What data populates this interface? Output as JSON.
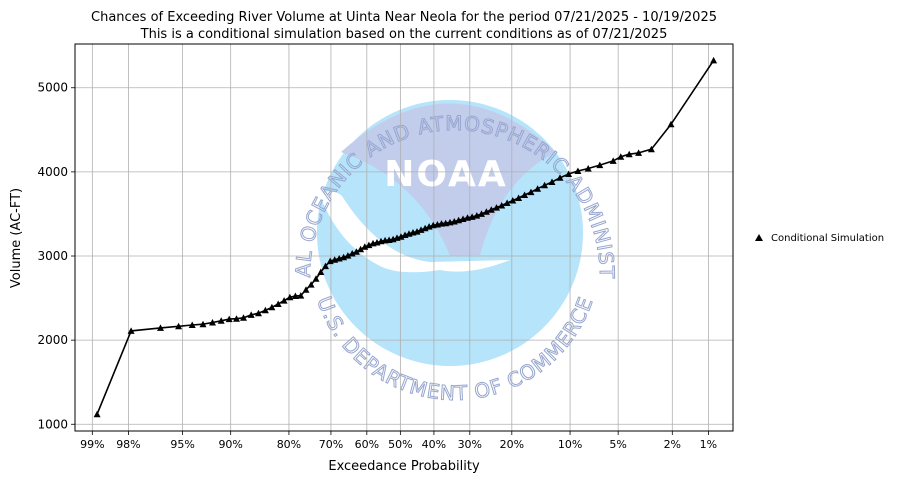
{
  "chart_data": {
    "type": "line",
    "title": "Chances of Exceeding River Volume at Uinta Near Neola for the period 07/21/2025 - 10/19/2025",
    "subtitle": "This is a conditional simulation based on the current conditions as of 07/21/2025",
    "xlabel": "Exceedance Probability",
    "ylabel": "Volume (AC-FT)",
    "x_scale": "normal-probability",
    "x_ticks": [
      {
        "p": 99,
        "label": "99%"
      },
      {
        "p": 98,
        "label": "98%"
      },
      {
        "p": 95,
        "label": "95%"
      },
      {
        "p": 90,
        "label": "90%"
      },
      {
        "p": 80,
        "label": "80%"
      },
      {
        "p": 70,
        "label": "70%"
      },
      {
        "p": 60,
        "label": "60%"
      },
      {
        "p": 50,
        "label": "50%"
      },
      {
        "p": 40,
        "label": "40%"
      },
      {
        "p": 30,
        "label": "30%"
      },
      {
        "p": 20,
        "label": "20%"
      },
      {
        "p": 10,
        "label": "10%"
      },
      {
        "p": 5,
        "label": "5%"
      },
      {
        "p": 2,
        "label": "2%"
      },
      {
        "p": 1,
        "label": "1%"
      }
    ],
    "y_ticks": [
      {
        "v": 1000,
        "label": "1000"
      },
      {
        "v": 2000,
        "label": "2000"
      },
      {
        "v": 3000,
        "label": "3000"
      },
      {
        "v": 4000,
        "label": "4000"
      },
      {
        "v": 5000,
        "label": "5000"
      }
    ],
    "ylim": [
      920,
      5520
    ],
    "xlim_prob": [
      99.3,
      0.6
    ],
    "grid": true,
    "legend_position": "right",
    "line_color": "#000000",
    "series": [
      {
        "name": "Conditional Simulation",
        "marker": "triangle",
        "points": [
          [
            98.9,
            1120
          ],
          [
            97.9,
            2110
          ],
          [
            96.5,
            2145
          ],
          [
            95.3,
            2165
          ],
          [
            94.2,
            2180
          ],
          [
            93.2,
            2190
          ],
          [
            92.2,
            2210
          ],
          [
            91.2,
            2230
          ],
          [
            90.2,
            2250
          ],
          [
            89.2,
            2255
          ],
          [
            88.2,
            2265
          ],
          [
            87.0,
            2300
          ],
          [
            85.8,
            2320
          ],
          [
            84.6,
            2355
          ],
          [
            83.4,
            2390
          ],
          [
            82.2,
            2430
          ],
          [
            81.0,
            2470
          ],
          [
            79.8,
            2510
          ],
          [
            78.6,
            2525
          ],
          [
            77.4,
            2530
          ],
          [
            76.2,
            2600
          ],
          [
            75.0,
            2660
          ],
          [
            73.8,
            2730
          ],
          [
            72.6,
            2810
          ],
          [
            71.4,
            2880
          ],
          [
            70.2,
            2940
          ],
          [
            69.0,
            2955
          ],
          [
            67.8,
            2970
          ],
          [
            66.6,
            2985
          ],
          [
            65.4,
            3005
          ],
          [
            64.2,
            3030
          ],
          [
            63.0,
            3050
          ],
          [
            61.8,
            3080
          ],
          [
            60.6,
            3110
          ],
          [
            59.4,
            3130
          ],
          [
            58.2,
            3150
          ],
          [
            57.0,
            3160
          ],
          [
            55.8,
            3175
          ],
          [
            54.6,
            3185
          ],
          [
            53.4,
            3190
          ],
          [
            52.2,
            3200
          ],
          [
            51.0,
            3215
          ],
          [
            49.8,
            3230
          ],
          [
            48.6,
            3250
          ],
          [
            47.4,
            3265
          ],
          [
            46.2,
            3280
          ],
          [
            45.0,
            3290
          ],
          [
            43.8,
            3310
          ],
          [
            42.6,
            3330
          ],
          [
            41.4,
            3350
          ],
          [
            40.2,
            3365
          ],
          [
            39.0,
            3375
          ],
          [
            37.8,
            3385
          ],
          [
            36.6,
            3390
          ],
          [
            35.4,
            3400
          ],
          [
            34.2,
            3410
          ],
          [
            33.0,
            3425
          ],
          [
            31.8,
            3440
          ],
          [
            30.6,
            3455
          ],
          [
            29.4,
            3465
          ],
          [
            28.2,
            3480
          ],
          [
            27.0,
            3500
          ],
          [
            25.8,
            3525
          ],
          [
            24.6,
            3550
          ],
          [
            23.4,
            3575
          ],
          [
            22.2,
            3600
          ],
          [
            21.0,
            3630
          ],
          [
            19.8,
            3660
          ],
          [
            18.6,
            3690
          ],
          [
            17.4,
            3725
          ],
          [
            16.2,
            3760
          ],
          [
            15.0,
            3800
          ],
          [
            13.8,
            3840
          ],
          [
            12.6,
            3880
          ],
          [
            11.4,
            3930
          ],
          [
            10.2,
            3975
          ],
          [
            9.0,
            4010
          ],
          [
            7.8,
            4040
          ],
          [
            6.6,
            4080
          ],
          [
            5.4,
            4130
          ],
          [
            4.8,
            4180
          ],
          [
            4.2,
            4210
          ],
          [
            3.6,
            4225
          ],
          [
            2.9,
            4270
          ],
          [
            2.05,
            4565
          ],
          [
            0.9,
            5325
          ]
        ]
      }
    ]
  },
  "watermark": {
    "top_text": "NATIONAL OCEANIC AND ATMOSPHERIC ADMINISTRATION",
    "bottom_text": "U.S. DEPARTMENT OF COMMERCE",
    "logo_text": "NOAA",
    "dark_color": "#c2cdec",
    "light_color": "#b5e4fb"
  }
}
